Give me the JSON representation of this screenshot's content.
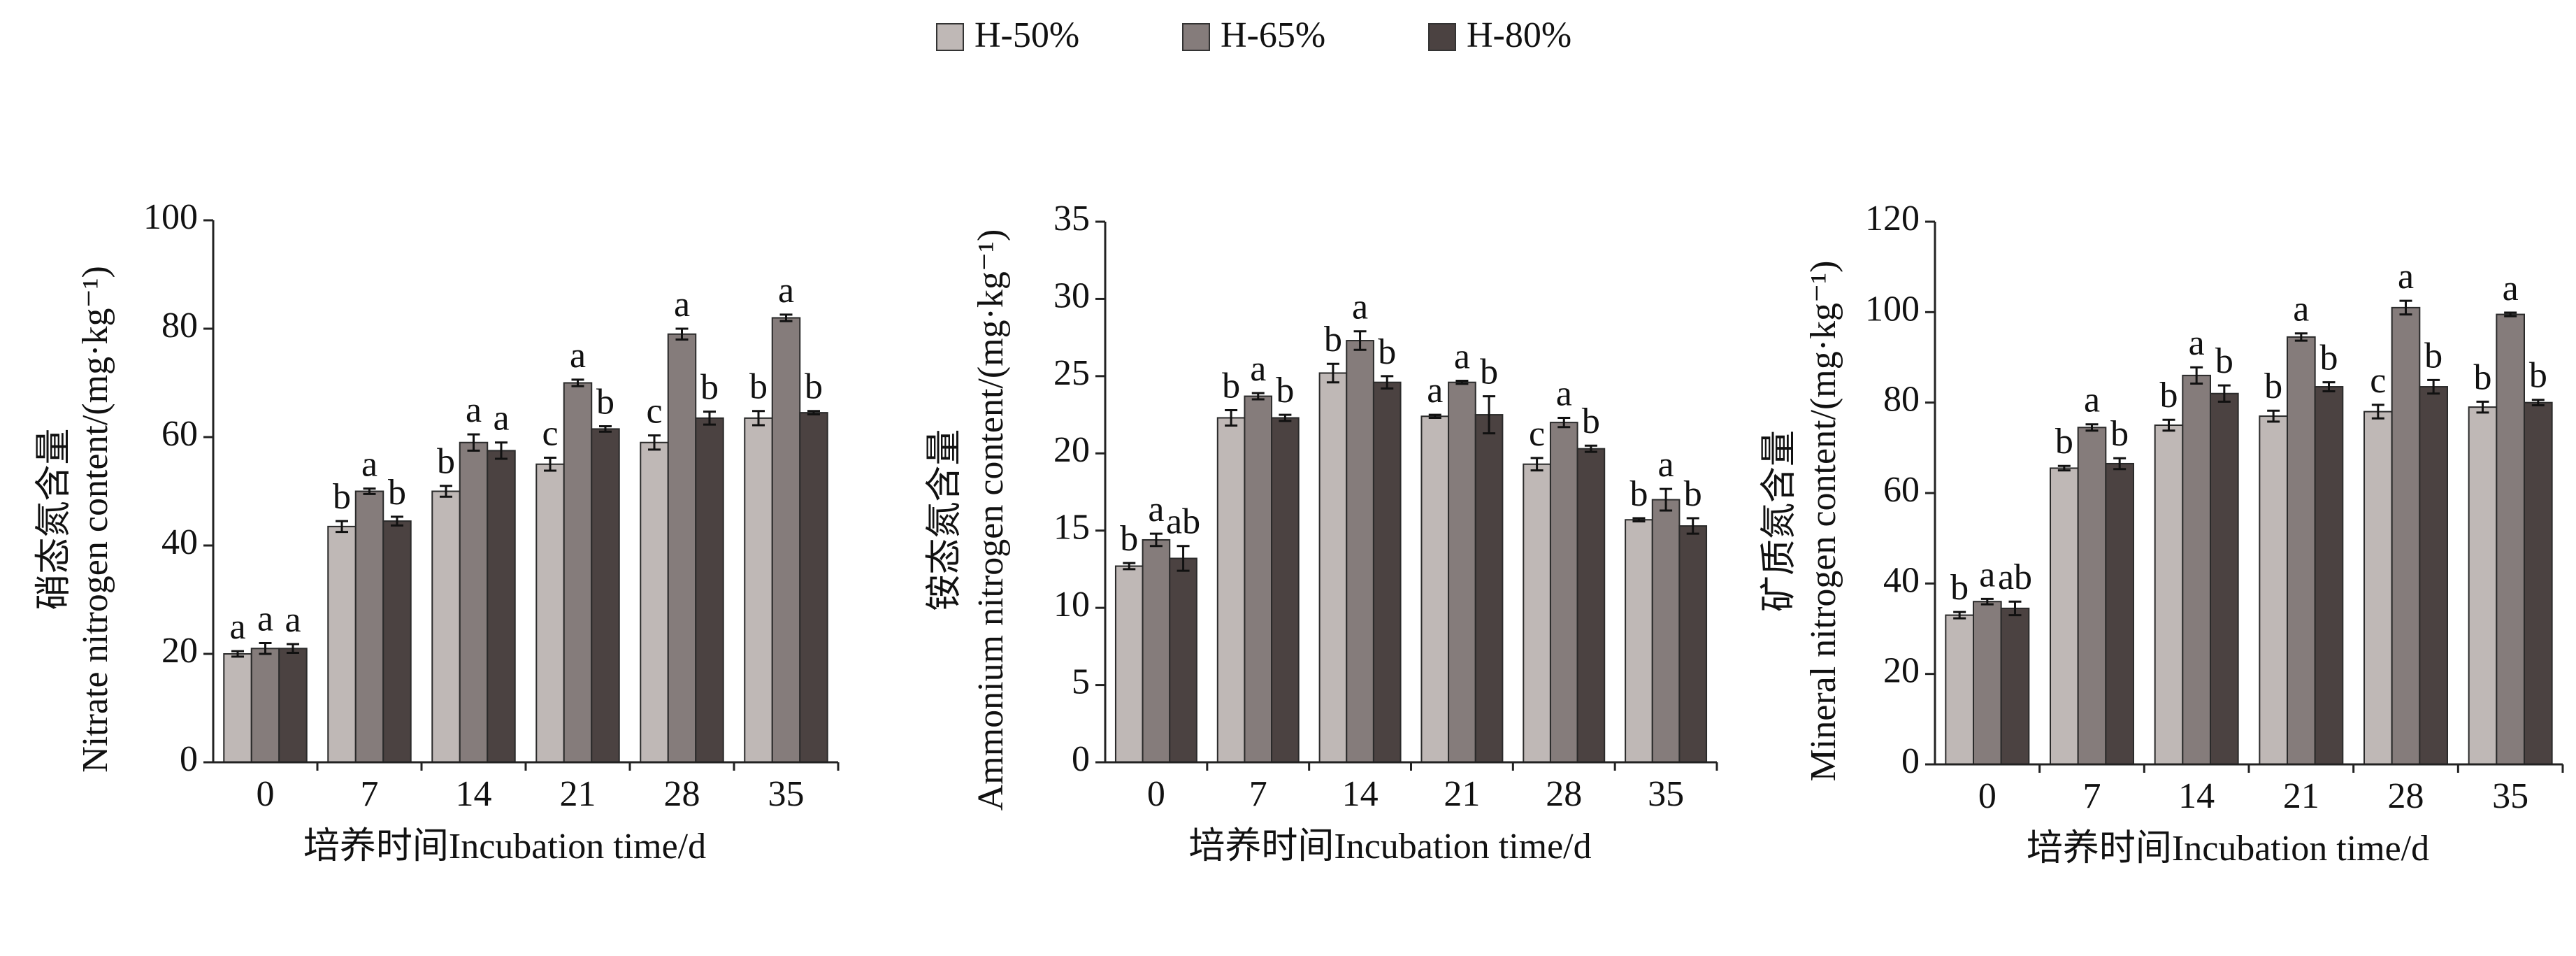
{
  "legend": [
    {
      "name": "H-50%",
      "color": "#bfb8b6"
    },
    {
      "name": "H-65%",
      "color": "#857c7b"
    },
    {
      "name": "H-80%",
      "color": "#4b4241"
    }
  ],
  "chart_data": [
    {
      "type": "bar",
      "y_label": [
        "硝态氮含量",
        "Nitrate nitrogen content/(mg·kg⁻¹)"
      ],
      "x_label": "培养时间Incubation time/d",
      "categories": [
        "0",
        "7",
        "14",
        "21",
        "28",
        "35"
      ],
      "ylim": [
        0,
        100
      ],
      "yticks": [
        0,
        20,
        40,
        60,
        80,
        100
      ],
      "series": [
        {
          "values": [
            20,
            43.5,
            50,
            55,
            59,
            63.5
          ],
          "errors": [
            0.5,
            1,
            1,
            1.2,
            1.3,
            1.3
          ],
          "letters": [
            "a",
            "b",
            "b",
            "c",
            "c",
            "b"
          ]
        },
        {
          "values": [
            21,
            50,
            59,
            70,
            79,
            82
          ],
          "errors": [
            1,
            0.5,
            1.5,
            0.6,
            1,
            0.6
          ],
          "letters": [
            "a",
            "a",
            "a",
            "a",
            "a",
            "a"
          ]
        },
        {
          "values": [
            21,
            44.5,
            57.5,
            61.5,
            63.5,
            64.5
          ],
          "errors": [
            0.8,
            0.8,
            1.5,
            0.5,
            1.2,
            0.3
          ],
          "letters": [
            "a",
            "b",
            "a",
            "b",
            "b",
            "b"
          ]
        }
      ]
    },
    {
      "type": "bar",
      "y_label": [
        "铵态氮含量",
        "Ammonium nitrogen content/(mg·kg⁻¹)"
      ],
      "x_label": "培养时间Incubation time/d",
      "categories": [
        "0",
        "7",
        "14",
        "21",
        "28",
        "35"
      ],
      "ylim": [
        0,
        35
      ],
      "yticks": [
        0,
        5,
        10,
        15,
        20,
        25,
        30,
        35
      ],
      "series": [
        {
          "values": [
            12.7,
            22.3,
            25.2,
            22.4,
            19.3,
            15.7
          ],
          "errors": [
            0.2,
            0.5,
            0.6,
            0.1,
            0.4,
            0.1
          ],
          "letters": [
            "b",
            "b",
            "b",
            "a",
            "c",
            "b"
          ]
        },
        {
          "values": [
            14.4,
            23.7,
            27.3,
            24.6,
            22,
            17
          ],
          "errors": [
            0.4,
            0.2,
            0.6,
            0.1,
            0.3,
            0.7
          ],
          "letters": [
            "a",
            "a",
            "a",
            "a",
            "a",
            "a"
          ]
        },
        {
          "values": [
            13.2,
            22.3,
            24.6,
            22.5,
            20.3,
            15.3
          ],
          "errors": [
            0.8,
            0.2,
            0.4,
            1.2,
            0.2,
            0.5
          ],
          "letters": [
            "ab",
            "b",
            "b",
            "b",
            "b",
            "b"
          ]
        }
      ]
    },
    {
      "type": "bar",
      "y_label": [
        "矿质氮含量",
        "Mineral nitrogen content/(mg·kg⁻¹)"
      ],
      "x_label": "培养时间Incubation time/d",
      "categories": [
        "0",
        "7",
        "14",
        "21",
        "28",
        "35"
      ],
      "ylim": [
        0,
        120
      ],
      "yticks": [
        0,
        20,
        40,
        60,
        80,
        100,
        120
      ],
      "series": [
        {
          "values": [
            33,
            65.5,
            75,
            77,
            78,
            79
          ],
          "errors": [
            0.7,
            0.5,
            1.2,
            1.2,
            1.5,
            1.2
          ],
          "letters": [
            "b",
            "b",
            "b",
            "b",
            "c",
            "b"
          ]
        },
        {
          "values": [
            36,
            74.5,
            86,
            94.5,
            101,
            99.5
          ],
          "errors": [
            0.6,
            0.7,
            1.8,
            0.8,
            1.5,
            0.4
          ],
          "letters": [
            "a",
            "a",
            "a",
            "a",
            "a",
            "a"
          ]
        },
        {
          "values": [
            34.5,
            66.5,
            82,
            83.5,
            83.5,
            80
          ],
          "errors": [
            1.5,
            1.2,
            1.8,
            1,
            1.5,
            0.6
          ],
          "letters": [
            "ab",
            "b",
            "b",
            "b",
            "b",
            "b"
          ]
        }
      ]
    }
  ]
}
